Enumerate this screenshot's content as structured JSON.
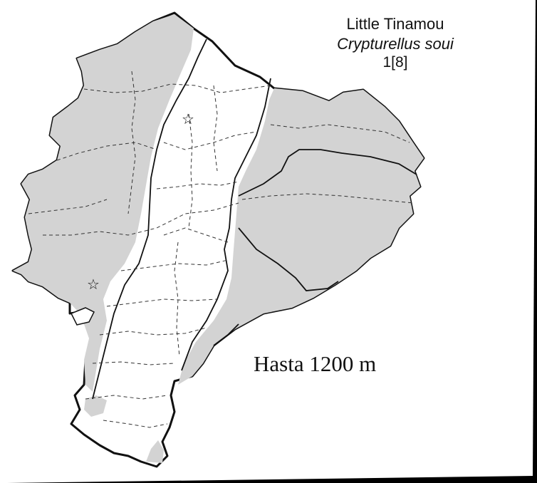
{
  "species": {
    "common_name": "Little Tinamou",
    "scientific_name": "Crypturellus soui",
    "code": "1[8]"
  },
  "elevation_note": "Hasta 1200 m",
  "colors": {
    "range_fill": "#d3d3d3",
    "country_fill": "#ffffff",
    "outline": "#111111",
    "background": "#000000"
  },
  "markers": [
    {
      "icon": "star-icon",
      "glyph": "☆"
    },
    {
      "icon": "star-icon",
      "glyph": "☆"
    }
  ]
}
